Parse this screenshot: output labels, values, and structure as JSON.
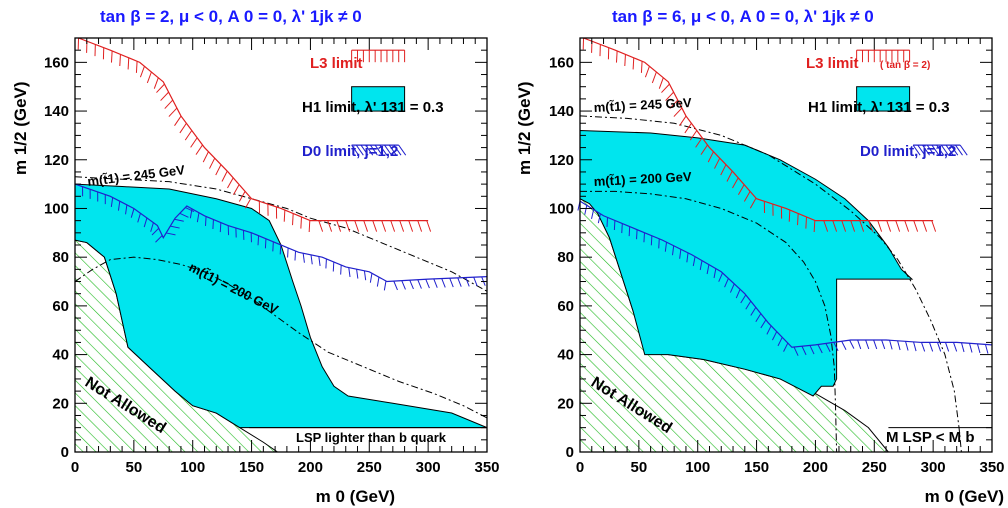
{
  "chart_data": [
    {
      "type": "area",
      "title": "tan β = 2,  μ < 0,  A 0 = 0,  λ' 1jk ≠ 0",
      "xlabel": "m 0 (GeV)",
      "ylabel": "m 1/2 (GeV)",
      "xlim": [
        0,
        350
      ],
      "ylim": [
        0,
        170
      ],
      "xticks": [
        0,
        50,
        100,
        150,
        200,
        250,
        300,
        350
      ],
      "yticks": [
        0,
        20,
        40,
        60,
        80,
        100,
        120,
        140,
        160
      ],
      "legend": [
        {
          "label": "L3 limit",
          "color": "#e02020",
          "style": "hatched-line"
        },
        {
          "label": "H1 limit,  λ' 131 = 0.3",
          "color": "#00e0e8",
          "style": "filled"
        },
        {
          "label": "D0 limit, j=1,2",
          "color": "#2020cc",
          "style": "hatched-line"
        }
      ],
      "annotations": [
        "m(t̃1) = 245 GeV",
        "m(t̃1) = 200 GeV",
        "Not Allowed",
        "LSP lighter than b quark"
      ],
      "series": [
        {
          "name": "not_allowed",
          "points": [
            [
              0,
              87
            ],
            [
              10,
              86
            ],
            [
              25,
              80
            ],
            [
              35,
              65
            ],
            [
              45,
              43
            ],
            [
              65,
              34
            ],
            [
              85,
              25
            ],
            [
              100,
              19
            ],
            [
              120,
              16
            ],
            [
              140,
              10
            ],
            [
              160,
              4
            ],
            [
              172,
              0
            ],
            [
              0,
              0
            ]
          ]
        },
        {
          "name": "lsp_line",
          "points": [
            [
              148,
              10
            ],
            [
              350,
              10
            ]
          ]
        },
        {
          "name": "H1",
          "points": [
            [
              0,
              110
            ],
            [
              40,
              109
            ],
            [
              80,
              108
            ],
            [
              120,
              104
            ],
            [
              150,
              100
            ],
            [
              165,
              95
            ],
            [
              175,
              85
            ],
            [
              185,
              70
            ],
            [
              192,
              60
            ],
            [
              200,
              47
            ],
            [
              210,
              35
            ],
            [
              220,
              27
            ],
            [
              232,
              23
            ],
            [
              270,
              20
            ],
            [
              320,
              16
            ],
            [
              350,
              10
            ],
            [
              148,
              10
            ],
            [
              140,
              10
            ],
            [
              120,
              16
            ],
            [
              100,
              19
            ],
            [
              85,
              25
            ],
            [
              65,
              34
            ],
            [
              45,
              43
            ],
            [
              35,
              65
            ],
            [
              25,
              80
            ],
            [
              10,
              86
            ],
            [
              0,
              87
            ]
          ]
        },
        {
          "name": "L3",
          "points": [
            [
              3,
              170
            ],
            [
              30,
              165
            ],
            [
              55,
              160
            ],
            [
              75,
              152
            ],
            [
              90,
              138
            ],
            [
              110,
              125
            ],
            [
              130,
              115
            ],
            [
              150,
              104
            ],
            [
              175,
              100
            ],
            [
              200,
              95
            ],
            [
              300,
              95
            ]
          ]
        },
        {
          "name": "D0",
          "points": [
            [
              0,
              110
            ],
            [
              30,
              105
            ],
            [
              50,
              100
            ],
            [
              70,
              93
            ],
            [
              75,
              88
            ],
            [
              85,
              96
            ],
            [
              95,
              101
            ],
            [
              110,
              97
            ],
            [
              130,
              93
            ],
            [
              150,
              90
            ],
            [
              170,
              86
            ],
            [
              190,
              82
            ],
            [
              210,
              80
            ],
            [
              230,
              76
            ],
            [
              250,
              74
            ],
            [
              265,
              70
            ],
            [
              300,
              71
            ],
            [
              350,
              72
            ]
          ]
        },
        {
          "name": "stop245",
          "points": [
            [
              0,
              113
            ],
            [
              40,
              112
            ],
            [
              80,
              111
            ],
            [
              120,
              108
            ],
            [
              150,
              104
            ],
            [
              180,
              100
            ],
            [
              200,
              96
            ],
            [
              230,
              92
            ],
            [
              260,
              86
            ],
            [
              290,
              80
            ],
            [
              320,
              74
            ],
            [
              350,
              66
            ]
          ]
        },
        {
          "name": "stop200",
          "points": [
            [
              0,
              70
            ],
            [
              15,
              75
            ],
            [
              30,
              79
            ],
            [
              50,
              80
            ],
            [
              70,
              79
            ],
            [
              90,
              77
            ],
            [
              110,
              74
            ],
            [
              130,
              69
            ],
            [
              150,
              63
            ],
            [
              170,
              56
            ],
            [
              190,
              49
            ],
            [
              215,
              41
            ],
            [
              245,
              35
            ],
            [
              275,
              29
            ],
            [
              305,
              24
            ],
            [
              330,
              19
            ],
            [
              350,
              14
            ]
          ]
        }
      ]
    },
    {
      "type": "area",
      "title": "tan β = 6,  μ < 0,  A 0 = 0,  λ' 1jk ≠ 0",
      "xlabel": "m 0 (GeV)",
      "ylabel": "m 1/2 (GeV)",
      "xlim": [
        0,
        350
      ],
      "ylim": [
        0,
        170
      ],
      "xticks": [
        0,
        50,
        100,
        150,
        200,
        250,
        300,
        350
      ],
      "yticks": [
        0,
        20,
        40,
        60,
        80,
        100,
        120,
        140,
        160
      ],
      "legend": [
        {
          "label": "L3 limit",
          "note": "( tan β = 2)",
          "color": "#e02020",
          "style": "hatched-line"
        },
        {
          "label": "H1 limit,  λ' 131 = 0.3",
          "color": "#00e0e8",
          "style": "filled"
        },
        {
          "label": "D0 limit, j=1,2",
          "color": "#2020cc",
          "style": "hatched-line"
        }
      ],
      "annotations": [
        "m(t̃1) = 245 GeV",
        "m(t̃1) = 200 GeV",
        "Not Allowed",
        "M LSP < M b"
      ],
      "series": [
        {
          "name": "not_allowed",
          "points": [
            [
              0,
              104
            ],
            [
              8,
              102
            ],
            [
              15,
              98
            ],
            [
              25,
              88
            ],
            [
              35,
              73
            ],
            [
              45,
              58
            ],
            [
              55,
              44
            ],
            [
              75,
              40
            ],
            [
              105,
              38
            ],
            [
              140,
              34
            ],
            [
              170,
              30
            ],
            [
              200,
              24
            ],
            [
              225,
              17
            ],
            [
              245,
              10
            ],
            [
              262,
              0
            ],
            [
              0,
              0
            ]
          ]
        },
        {
          "name": "mlsp_line",
          "points": [
            [
              262,
              10
            ],
            [
              350,
              10
            ]
          ]
        },
        {
          "name": "H1",
          "points": [
            [
              0,
              132
            ],
            [
              60,
              131
            ],
            [
              100,
              129
            ],
            [
              140,
              126
            ],
            [
              170,
              120
            ],
            [
              200,
              112
            ],
            [
              225,
              104
            ],
            [
              245,
              95
            ],
            [
              262,
              84
            ],
            [
              273,
              75
            ],
            [
              282,
              71
            ],
            [
              218,
              71
            ],
            [
              218,
              30
            ],
            [
              215,
              27
            ],
            [
              205,
              27
            ],
            [
              198,
              23
            ],
            [
              170,
              30
            ],
            [
              140,
              34
            ],
            [
              105,
              38
            ],
            [
              75,
              40
            ],
            [
              55,
              40
            ],
            [
              45,
              58
            ],
            [
              35,
              73
            ],
            [
              25,
              88
            ],
            [
              15,
              98
            ],
            [
              8,
              102
            ],
            [
              0,
              104
            ]
          ]
        },
        {
          "name": "L3",
          "points": [
            [
              3,
              170
            ],
            [
              30,
              165
            ],
            [
              55,
              160
            ],
            [
              75,
              152
            ],
            [
              90,
              138
            ],
            [
              110,
              125
            ],
            [
              130,
              115
            ],
            [
              150,
              104
            ],
            [
              175,
              100
            ],
            [
              200,
              95
            ],
            [
              300,
              95
            ]
          ]
        },
        {
          "name": "D0",
          "points": [
            [
              0,
              103
            ],
            [
              20,
              97
            ],
            [
              45,
              92
            ],
            [
              70,
              87
            ],
            [
              95,
              81
            ],
            [
              120,
              74
            ],
            [
              140,
              65
            ],
            [
              160,
              53
            ],
            [
              180,
              43
            ],
            [
              200,
              44
            ],
            [
              230,
              46
            ],
            [
              260,
              46
            ],
            [
              290,
              45
            ],
            [
              320,
              45
            ],
            [
              350,
              44
            ]
          ]
        },
        {
          "name": "stop245",
          "points": [
            [
              0,
              138
            ],
            [
              40,
              137
            ],
            [
              80,
              135
            ],
            [
              120,
              130
            ],
            [
              160,
              122
            ],
            [
              200,
              110
            ],
            [
              230,
              99
            ],
            [
              255,
              88
            ],
            [
              270,
              79
            ],
            [
              285,
              67
            ],
            [
              298,
              54
            ],
            [
              310,
              40
            ],
            [
              318,
              25
            ],
            [
              322,
              10
            ],
            [
              324,
              0
            ]
          ]
        },
        {
          "name": "stop200",
          "points": [
            [
              0,
              107
            ],
            [
              30,
              107
            ],
            [
              60,
              106
            ],
            [
              90,
              104
            ],
            [
              120,
              100
            ],
            [
              150,
              94
            ],
            [
              175,
              86
            ],
            [
              190,
              78
            ],
            [
              200,
              70
            ],
            [
              208,
              60
            ],
            [
              213,
              48
            ],
            [
              216,
              35
            ],
            [
              217,
              20
            ],
            [
              218,
              0
            ]
          ]
        }
      ]
    }
  ]
}
